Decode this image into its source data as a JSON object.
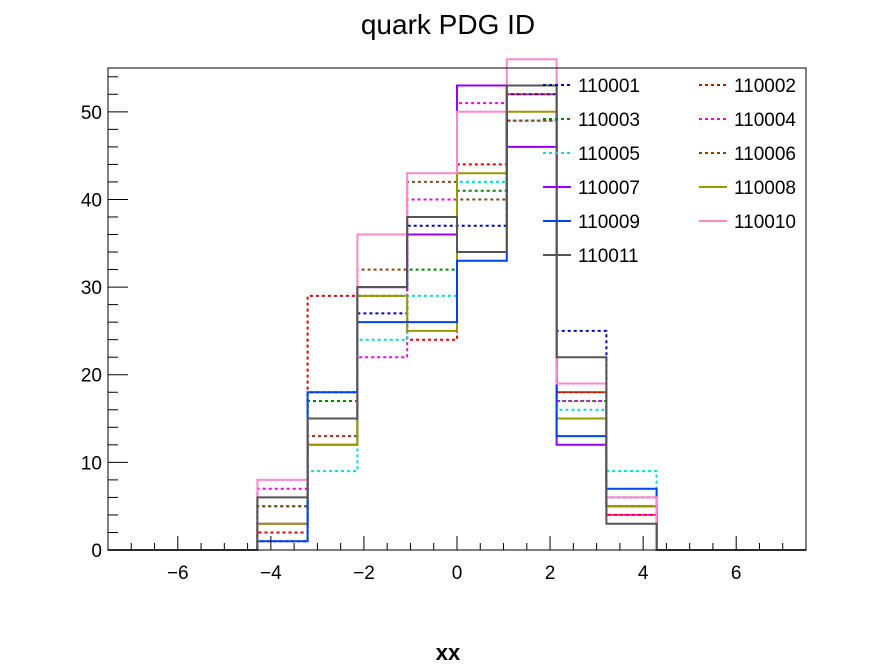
{
  "chart_data": {
    "type": "line",
    "style": "step-histogram",
    "title": "quark PDG ID",
    "xlabel": "xx",
    "ylabel": "",
    "xlim": [
      -7.5,
      7.5
    ],
    "ylim": [
      0,
      55
    ],
    "x_ticks": [
      "−6",
      "−4",
      "−2",
      "0",
      "2",
      "4",
      "6"
    ],
    "y_ticks": [
      "0",
      "10",
      "20",
      "30",
      "40",
      "50"
    ],
    "bin_edges": [
      -7.5,
      -6.43,
      -5.36,
      -4.29,
      -3.21,
      -2.14,
      -1.07,
      0,
      1.07,
      2.14,
      3.21,
      4.29,
      5.36,
      6.43,
      7.5
    ],
    "grid": false,
    "legend_position": "top-right",
    "series": [
      {
        "name": "110001",
        "color": "#0000cc",
        "dash": "dotted",
        "values": [
          0,
          0,
          0,
          1,
          18,
          27,
          37,
          37,
          52,
          25,
          6,
          0,
          0,
          0
        ]
      },
      {
        "name": "110002",
        "color": "#dd0000",
        "dash": "dotted",
        "values": [
          0,
          0,
          0,
          2,
          29,
          29,
          24,
          44,
          52,
          18,
          4,
          0,
          0,
          0
        ]
      },
      {
        "name": "110003",
        "color": "#008800",
        "dash": "dotted",
        "values": [
          0,
          0,
          0,
          5,
          17,
          29,
          32,
          41,
          49,
          17,
          5,
          0,
          0,
          0
        ]
      },
      {
        "name": "110004",
        "color": "#ee00ee",
        "dash": "dotted",
        "values": [
          0,
          0,
          0,
          7,
          13,
          22,
          40,
          51,
          49,
          17,
          4,
          0,
          0,
          0
        ]
      },
      {
        "name": "110005",
        "color": "#00dddd",
        "dash": "dotted",
        "values": [
          0,
          0,
          0,
          5,
          9,
          24,
          29,
          42,
          49,
          16,
          9,
          0,
          0,
          0
        ]
      },
      {
        "name": "110006",
        "color": "#8b4513",
        "dash": "dotted",
        "values": [
          0,
          0,
          0,
          5,
          13,
          32,
          42,
          40,
          49,
          18,
          5,
          0,
          0,
          0
        ]
      },
      {
        "name": "110007",
        "color": "#9900ee",
        "dash": "solid",
        "values": [
          0,
          0,
          0,
          3,
          12,
          30,
          36,
          53,
          46,
          12,
          5,
          0,
          0,
          0
        ]
      },
      {
        "name": "110008",
        "color": "#999900",
        "dash": "solid",
        "values": [
          0,
          0,
          0,
          3,
          12,
          29,
          25,
          43,
          50,
          15,
          5,
          0,
          0,
          0
        ]
      },
      {
        "name": "110009",
        "color": "#0044ee",
        "dash": "solid",
        "values": [
          0,
          0,
          0,
          1,
          18,
          26,
          26,
          33,
          53,
          13,
          7,
          0,
          0,
          0
        ]
      },
      {
        "name": "110010",
        "color": "#ff88cc",
        "dash": "solid",
        "values": [
          0,
          0,
          0,
          8,
          15,
          36,
          43,
          50,
          56,
          19,
          6,
          0,
          0,
          0
        ]
      },
      {
        "name": "110011",
        "color": "#555555",
        "dash": "solid",
        "values": [
          0,
          0,
          0,
          6,
          15,
          30,
          38,
          34,
          53,
          22,
          3,
          0,
          0,
          0
        ]
      }
    ]
  }
}
